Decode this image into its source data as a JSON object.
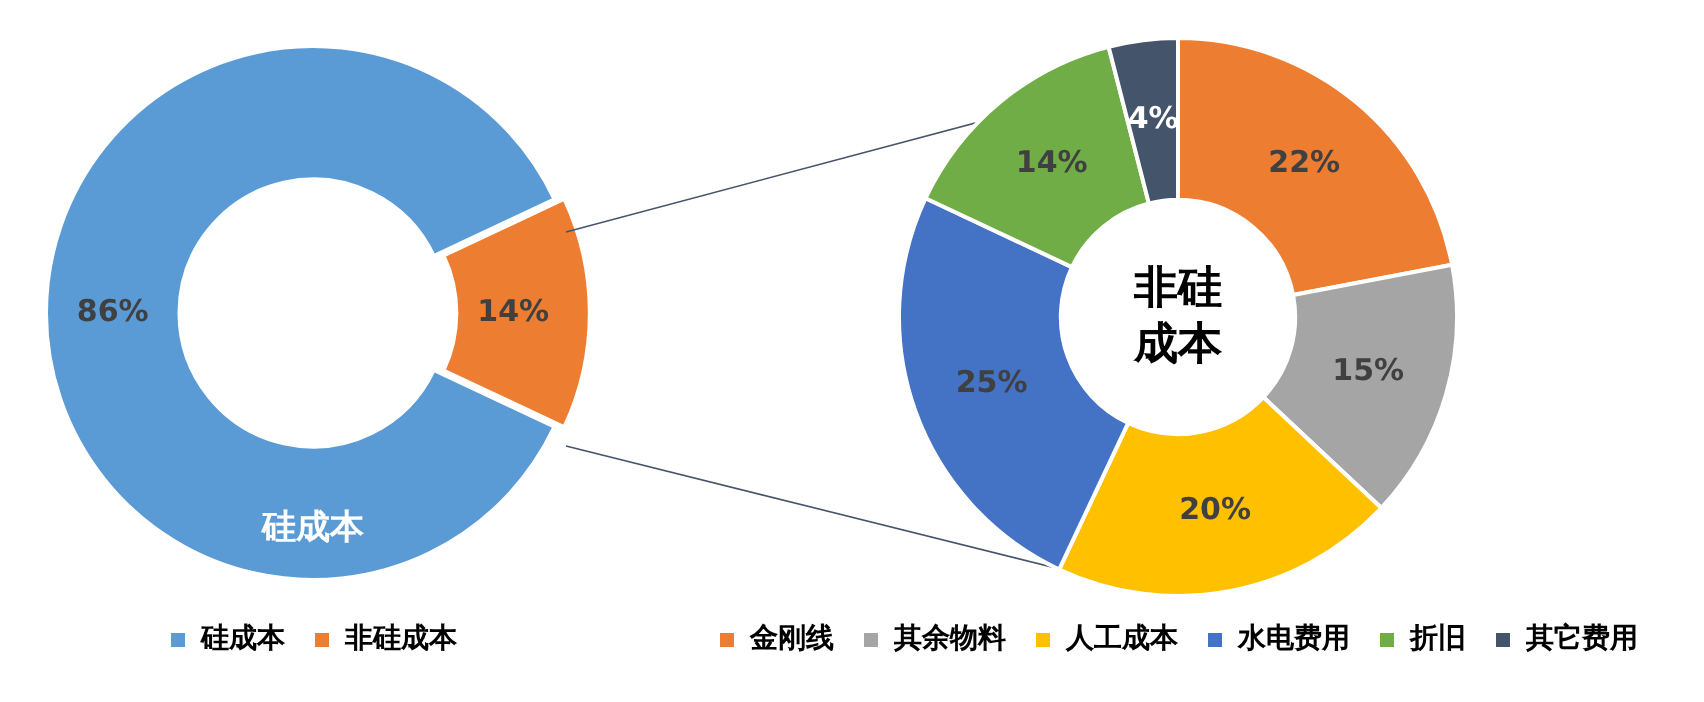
{
  "chart_data": [
    {
      "type": "donut",
      "categories": [
        "硅成本",
        "非硅成本"
      ],
      "values": [
        86,
        14
      ],
      "colors": [
        "#5b9bd5",
        "#ed7d31"
      ],
      "value_labels": [
        "86%",
        "14%"
      ],
      "annotations": [
        "硅成本"
      ],
      "legend": "bottom"
    },
    {
      "type": "donut",
      "title": "非硅成本",
      "categories": [
        "金刚线",
        "其余物料",
        "人工成本",
        "水电费用",
        "折旧",
        "其它费用"
      ],
      "values": [
        22,
        15,
        20,
        25,
        14,
        4
      ],
      "colors": [
        "#ed7d31",
        "#a5a5a5",
        "#ffc000",
        "#4472c4",
        "#70ad47",
        "#44546a"
      ],
      "value_labels": [
        "22%",
        "15%",
        "20%",
        "25%",
        "14%",
        "4%"
      ],
      "legend": "bottom"
    }
  ]
}
